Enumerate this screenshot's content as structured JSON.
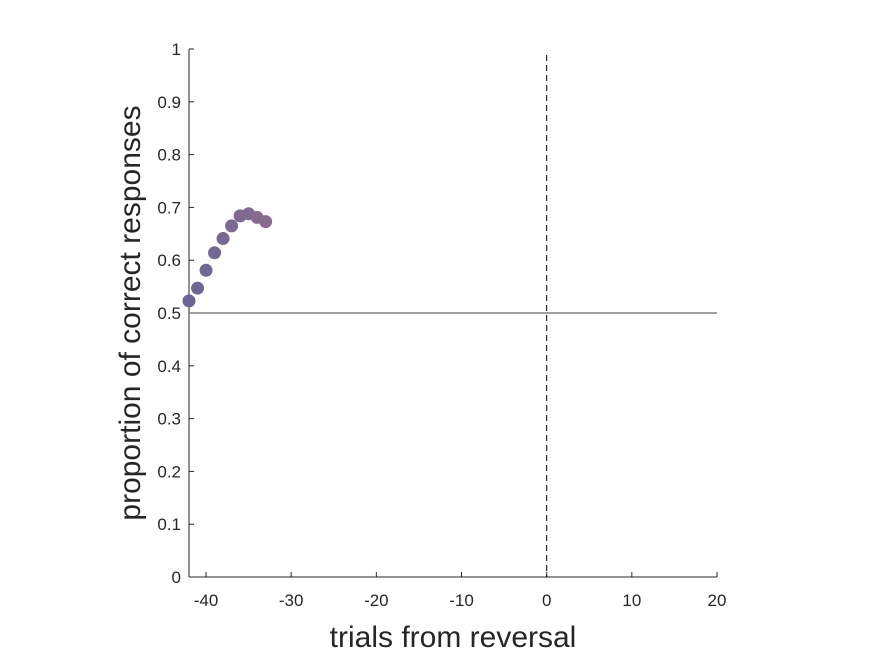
{
  "chart_data": {
    "type": "scatter",
    "title": "",
    "xlabel": "trials from reversal",
    "ylabel": "proportion of correct responses",
    "xlim": [
      -42,
      20
    ],
    "ylim": [
      0,
      1
    ],
    "xticks": [
      -40,
      -30,
      -20,
      -10,
      0,
      10,
      20
    ],
    "yticks": [
      0,
      0.1,
      0.2,
      0.3,
      0.4,
      0.5,
      0.6,
      0.7,
      0.8,
      0.9,
      1
    ],
    "xtick_labels": [
      "-40",
      "-30",
      "-20",
      "-10",
      "0",
      "10",
      "20"
    ],
    "ytick_labels": [
      "0",
      "0.1",
      "0.2",
      "0.3",
      "0.4",
      "0.5",
      "0.6",
      "0.7",
      "0.8",
      "0.9",
      "1"
    ],
    "reference_lines": {
      "horizontal": {
        "y": 0.5,
        "style": "solid",
        "color": "#808080"
      },
      "vertical": {
        "x": 0,
        "style": "dashed",
        "color": "#000000"
      }
    },
    "grid": false,
    "series": [
      {
        "x": [
          -42,
          -41,
          -40,
          -39,
          -38,
          -37,
          -36,
          -35,
          -34,
          -33
        ],
        "y": [
          0.523,
          0.547,
          0.581,
          0.614,
          0.641,
          0.665,
          0.684,
          0.688,
          0.681,
          0.673
        ],
        "colors": [
          "#6b6691",
          "#6d6793",
          "#706892",
          "#736892",
          "#776992",
          "#7a6991",
          "#7e6a90",
          "#816a8f",
          "#856b8f",
          "#886b8e"
        ]
      }
    ]
  }
}
